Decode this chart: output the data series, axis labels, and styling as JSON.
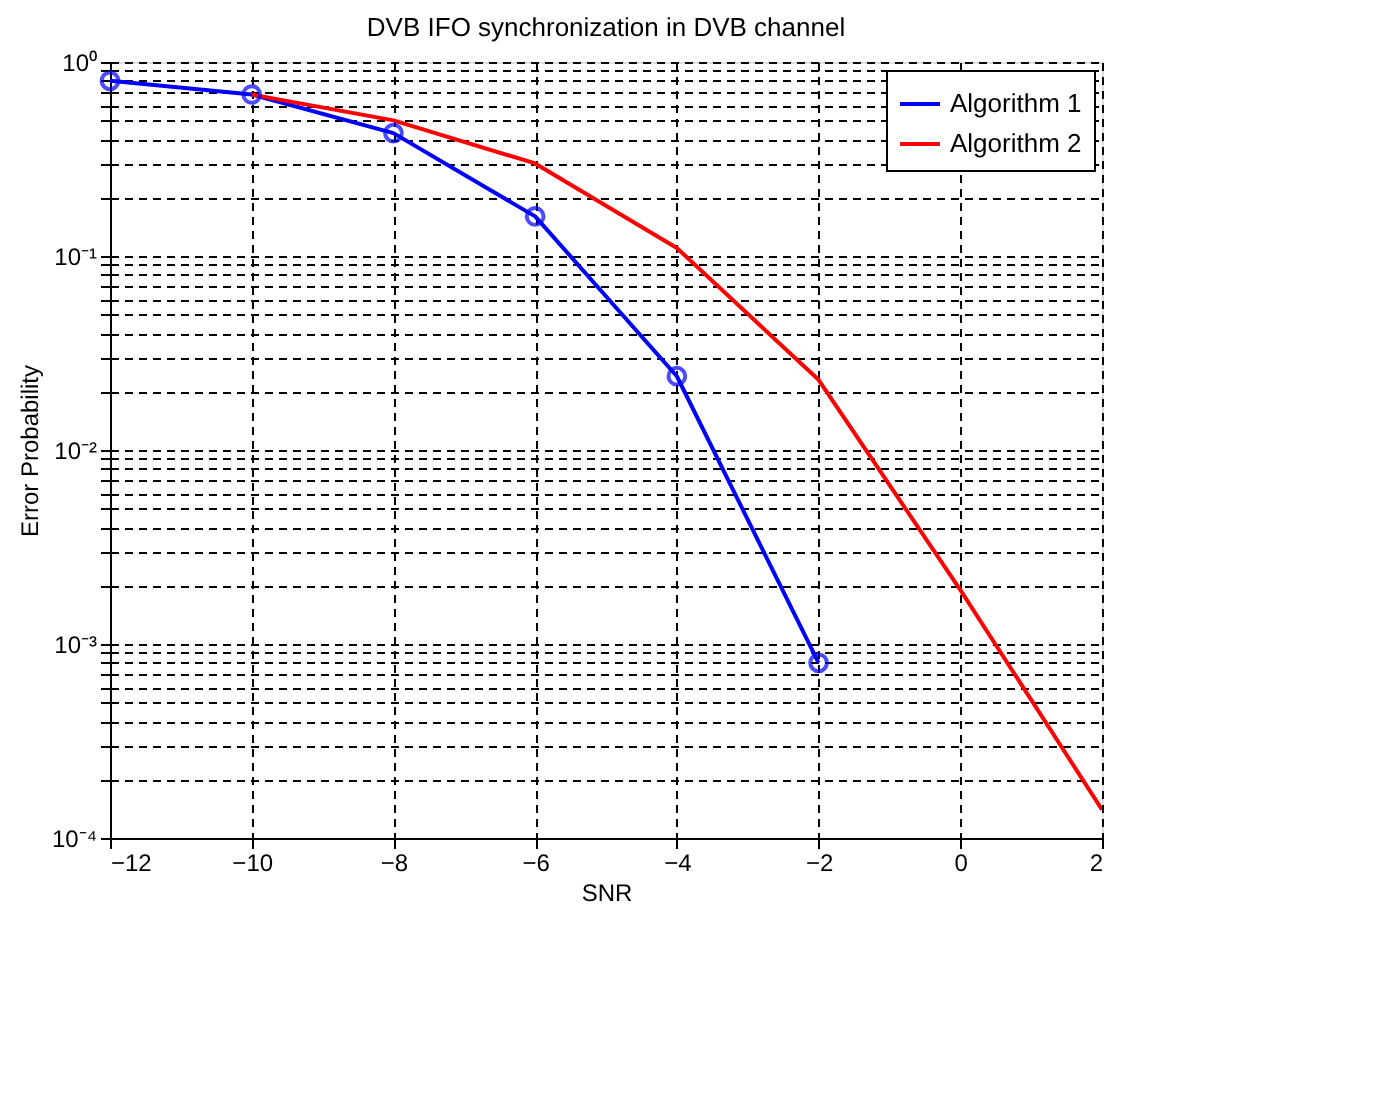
{
  "chart_data": {
    "type": "line",
    "title": "DVB IFO synchronization in DVB channel",
    "xlabel": "SNR",
    "ylabel": "Error Probability",
    "log": "y",
    "grid": true,
    "legend": "top right",
    "xlim": [
      -12,
      2
    ],
    "xticks": [
      -12,
      -10,
      -8,
      -6,
      -4,
      -2,
      0,
      2
    ],
    "ylim": [
      0.0001,
      1
    ],
    "yticks": [
      {
        "value": 0.0001,
        "label": "10⁻⁴"
      },
      {
        "value": 0.0002,
        "label": null
      },
      {
        "value": 0.0003,
        "label": null
      },
      {
        "value": 0.0004,
        "label": null
      },
      {
        "value": 0.0005,
        "label": null
      },
      {
        "value": 0.0006,
        "label": null
      },
      {
        "value": 0.0007,
        "label": null
      },
      {
        "value": 0.0008,
        "label": null
      },
      {
        "value": 0.0009,
        "label": null
      },
      {
        "value": 0.001,
        "label": "10⁻³"
      },
      {
        "value": 0.002,
        "label": null
      },
      {
        "value": 0.003,
        "label": null
      },
      {
        "value": 0.004,
        "label": null
      },
      {
        "value": 0.005,
        "label": null
      },
      {
        "value": 0.006,
        "label": null
      },
      {
        "value": 0.007,
        "label": null
      },
      {
        "value": 0.008,
        "label": null
      },
      {
        "value": 0.009,
        "label": null
      },
      {
        "value": 0.01,
        "label": "10⁻²"
      },
      {
        "value": 0.02,
        "label": null
      },
      {
        "value": 0.03,
        "label": null
      },
      {
        "value": 0.04,
        "label": null
      },
      {
        "value": 0.05,
        "label": null
      },
      {
        "value": 0.06,
        "label": null
      },
      {
        "value": 0.07,
        "label": null
      },
      {
        "value": 0.08,
        "label": null
      },
      {
        "value": 0.09,
        "label": null
      },
      {
        "value": 0.1,
        "label": "10⁻¹"
      },
      {
        "value": 0.2,
        "label": null
      },
      {
        "value": 0.3,
        "label": null
      },
      {
        "value": 0.4,
        "label": null
      },
      {
        "value": 0.5,
        "label": null
      },
      {
        "value": 0.6,
        "label": null
      },
      {
        "value": 0.7,
        "label": null
      },
      {
        "value": 0.8,
        "label": null
      },
      {
        "value": 0.9,
        "label": null
      },
      {
        "value": 1,
        "label": "10⁰"
      }
    ],
    "series": [
      {
        "name": "Algorithm 1",
        "color": "#0000ff",
        "marker": "circle",
        "x": [
          -12,
          -10,
          -8,
          -6,
          -4,
          -2
        ],
        "values": [
          0.8,
          0.68,
          0.43,
          0.16,
          0.024,
          0.0008
        ]
      },
      {
        "name": "Algorithm 2",
        "color": "#ff0000",
        "marker": "none",
        "x": [
          -10,
          -8,
          -6,
          -4,
          -2,
          0,
          2
        ],
        "values": [
          0.68,
          0.5,
          0.3,
          0.11,
          0.023,
          0.0019,
          0.00014
        ]
      }
    ]
  }
}
